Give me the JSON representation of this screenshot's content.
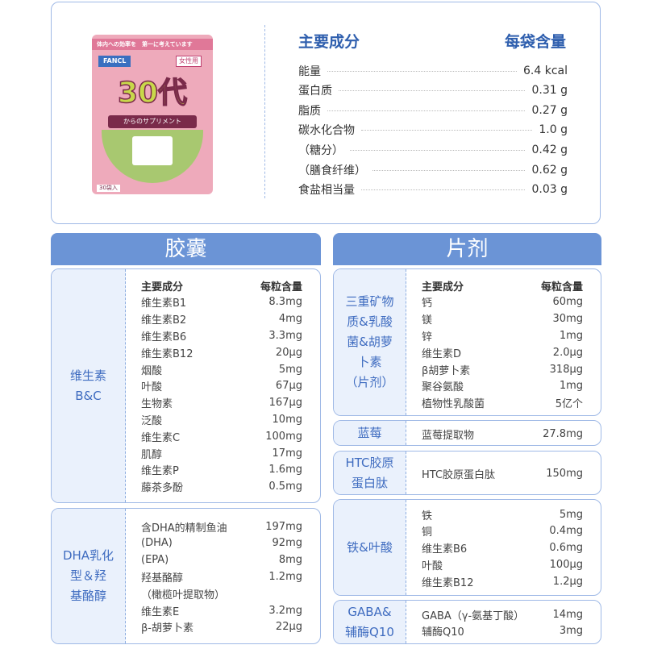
{
  "product": {
    "brand": "FANCL",
    "band_text": "体内への効率を　第一に考えています",
    "age": "30代",
    "subtitle": "からのサプリメント",
    "badge": "女性用",
    "count": "30袋入",
    "colors": {
      "pink": "#eeaabb",
      "maroon": "#7a2a4a",
      "green": "#a8c870"
    }
  },
  "summary": {
    "header_name": "主要成分",
    "header_value": "每袋含量",
    "rows": [
      {
        "name": "能量",
        "value": "6.4 kcal"
      },
      {
        "name": "蛋白质",
        "value": "0.31 g"
      },
      {
        "name": "脂质",
        "value": "0.27 g"
      },
      {
        "name": "碳水化合物",
        "value": "1.0 g"
      },
      {
        "name": "（糖分）",
        "value": "0.42 g"
      },
      {
        "name": "（膳食纤维）",
        "value": "0.62 g"
      },
      {
        "name": "食盐相当量",
        "value": "0.03 g"
      }
    ]
  },
  "colors": {
    "accent": "#6b94d6",
    "label_text": "#3f6cc0",
    "label_bg": "#eaf1fc",
    "border": "#9fb9e6"
  },
  "sections": [
    {
      "title": "胶囊",
      "boxes": [
        {
          "label": "维生素\nB&C",
          "header": {
            "name": "主要成分",
            "value": "每粒含量"
          },
          "rows": [
            {
              "name": "维生素B1",
              "value": "8.3mg"
            },
            {
              "name": "维生素B2",
              "value": "4mg"
            },
            {
              "name": "维生素B6",
              "value": "3.3mg"
            },
            {
              "name": "维生素B12",
              "value": "20μg"
            },
            {
              "name": "烟酸",
              "value": "5mg"
            },
            {
              "name": "叶酸",
              "value": "67μg"
            },
            {
              "name": "生物素",
              "value": "167μg"
            },
            {
              "name": "泛酸",
              "value": "10mg"
            },
            {
              "name": "维生素C",
              "value": "100mg"
            },
            {
              "name": "肌醇",
              "value": "17mg"
            },
            {
              "name": "维生素P",
              "value": "1.6mg"
            },
            {
              "name": "藤茶多酚",
              "value": "0.5mg"
            }
          ]
        },
        {
          "label": "DHA乳化\n型＆羟\n基酪醇",
          "rows": [
            {
              "name": "含DHA的精制鱼油",
              "value": "197mg"
            },
            {
              "name": "(DHA)",
              "value": "92mg"
            },
            {
              "name": "(EPA)",
              "value": "8mg"
            },
            {
              "name": "羟基酪醇",
              "value": "1.2mg"
            },
            {
              "name": "（橄榄叶提取物）",
              "value": ""
            },
            {
              "name": "维生素E",
              "value": "3.2mg"
            },
            {
              "name": "β-胡萝卜素",
              "value": "22μg"
            }
          ]
        }
      ]
    },
    {
      "title": "片剂",
      "boxes": [
        {
          "label": "三重矿物\n质&乳酸\n菌&胡萝\n卜素\n（片剂）",
          "header": {
            "name": "主要成分",
            "value": "每粒含量"
          },
          "rows": [
            {
              "name": "钙",
              "value": "60mg"
            },
            {
              "name": "镁",
              "value": "30mg"
            },
            {
              "name": "锌",
              "value": "1mg"
            },
            {
              "name": "维生素D",
              "value": "2.0μg"
            },
            {
              "name": "β胡萝卜素",
              "value": "318μg"
            },
            {
              "name": "聚谷氨酸",
              "value": "1mg"
            },
            {
              "name": "植物性乳酸菌",
              "value": "5亿个"
            }
          ]
        },
        {
          "label": "蓝莓",
          "rows": [
            {
              "name": "蓝莓提取物",
              "value": "27.8mg"
            }
          ]
        },
        {
          "label": "HTC胶原\n蛋白肽",
          "rows": [
            {
              "name": "HTC胶原蛋白肽",
              "value": "150mg"
            }
          ]
        },
        {
          "label": "铁&叶酸",
          "rows": [
            {
              "name": "铁",
              "value": "5mg"
            },
            {
              "name": "铜",
              "value": "0.4mg"
            },
            {
              "name": "维生素B6",
              "value": "0.6mg"
            },
            {
              "name": "叶酸",
              "value": "100μg"
            },
            {
              "name": "维生素B12",
              "value": "1.2μg"
            }
          ]
        },
        {
          "label": "GABA&\n辅酶Q10",
          "rows": [
            {
              "name": "GABA（γ-氨基丁酸）",
              "value": "14mg"
            },
            {
              "name": "辅酶Q10",
              "value": "3mg"
            }
          ]
        }
      ]
    }
  ]
}
